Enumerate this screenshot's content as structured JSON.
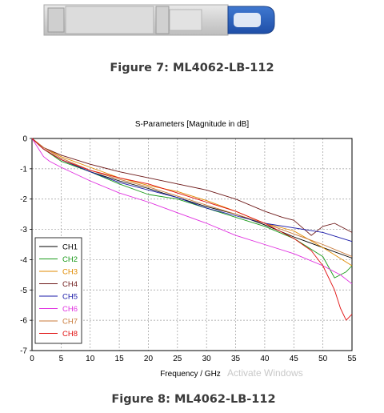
{
  "figures": [
    {
      "caption": "Figure 7: ML4062-LB-112"
    },
    {
      "caption": "Figure 8: ML4062-LB-112"
    }
  ],
  "watermark": "Activate Windows",
  "chart_data": {
    "type": "line",
    "title": "S-Parameters [Magnitude in dB]",
    "xlabel": "Frequency / GHz",
    "ylabel": "",
    "xlim": [
      0,
      55
    ],
    "ylim": [
      -7,
      0
    ],
    "xticks": [
      0,
      5,
      10,
      15,
      20,
      25,
      30,
      35,
      40,
      45,
      50,
      55
    ],
    "yticks": [
      0,
      -1,
      -2,
      -3,
      -4,
      -5,
      -6,
      -7
    ],
    "grid": true,
    "legend_position": "bottom-left",
    "series": [
      {
        "name": "CH1",
        "color": "#000000",
        "x": [
          0,
          2,
          5,
          10,
          15,
          20,
          25,
          30,
          35,
          40,
          45,
          50,
          55
        ],
        "y": [
          0,
          -0.35,
          -0.7,
          -1.1,
          -1.4,
          -1.65,
          -1.95,
          -2.25,
          -2.5,
          -2.85,
          -3.25,
          -3.6,
          -3.95
        ]
      },
      {
        "name": "CH2",
        "color": "#1a9a1a",
        "x": [
          0,
          2,
          5,
          10,
          15,
          20,
          25,
          30,
          35,
          40,
          45,
          50,
          52,
          54,
          55
        ],
        "y": [
          0,
          -0.35,
          -0.75,
          -1.1,
          -1.5,
          -1.85,
          -2.0,
          -2.3,
          -2.6,
          -2.9,
          -3.3,
          -3.9,
          -4.6,
          -4.4,
          -4.2
        ]
      },
      {
        "name": "CH3",
        "color": "#e08a00",
        "x": [
          0,
          2,
          5,
          10,
          15,
          20,
          25,
          30,
          35,
          40,
          45,
          50,
          55
        ],
        "y": [
          0,
          -0.3,
          -0.6,
          -0.95,
          -1.3,
          -1.55,
          -1.75,
          -2.05,
          -2.4,
          -2.8,
          -3.05,
          -3.6,
          -4.2
        ]
      },
      {
        "name": "CH4",
        "color": "#6e1a1a",
        "x": [
          0,
          2,
          5,
          10,
          15,
          20,
          25,
          30,
          35,
          40,
          43,
          45,
          48,
          50,
          52,
          55
        ],
        "y": [
          0,
          -0.3,
          -0.55,
          -0.85,
          -1.1,
          -1.3,
          -1.5,
          -1.7,
          -2.0,
          -2.4,
          -2.6,
          -2.7,
          -3.2,
          -2.9,
          -2.8,
          -3.1
        ]
      },
      {
        "name": "CH5",
        "color": "#1a1aa8",
        "x": [
          0,
          2,
          5,
          10,
          15,
          20,
          25,
          30,
          35,
          40,
          45,
          50,
          55
        ],
        "y": [
          0,
          -0.35,
          -0.7,
          -1.1,
          -1.45,
          -1.7,
          -1.95,
          -2.3,
          -2.55,
          -2.8,
          -2.95,
          -3.1,
          -3.4
        ]
      },
      {
        "name": "CH6",
        "color": "#e030e0",
        "x": [
          0,
          2,
          3,
          5,
          10,
          15,
          20,
          25,
          30,
          35,
          40,
          45,
          50,
          53,
          55
        ],
        "y": [
          0,
          -0.6,
          -0.75,
          -0.95,
          -1.4,
          -1.8,
          -2.1,
          -2.45,
          -2.8,
          -3.2,
          -3.5,
          -3.8,
          -4.2,
          -4.5,
          -4.8
        ]
      },
      {
        "name": "CH7",
        "color": "#c87a3a",
        "x": [
          0,
          2,
          5,
          10,
          15,
          20,
          25,
          30,
          35,
          40,
          45,
          50,
          55
        ],
        "y": [
          0,
          -0.3,
          -0.65,
          -1.05,
          -1.35,
          -1.6,
          -1.9,
          -2.2,
          -2.5,
          -2.8,
          -3.15,
          -3.5,
          -3.9
        ]
      },
      {
        "name": "CH8",
        "color": "#e01010",
        "x": [
          0,
          2,
          5,
          10,
          15,
          20,
          25,
          30,
          35,
          40,
          45,
          48,
          50,
          52,
          53,
          54,
          55
        ],
        "y": [
          0,
          -0.35,
          -0.7,
          -1.05,
          -1.3,
          -1.5,
          -1.8,
          -2.1,
          -2.4,
          -2.8,
          -3.3,
          -3.7,
          -4.2,
          -5.0,
          -5.6,
          -6.0,
          -5.8
        ]
      }
    ]
  }
}
